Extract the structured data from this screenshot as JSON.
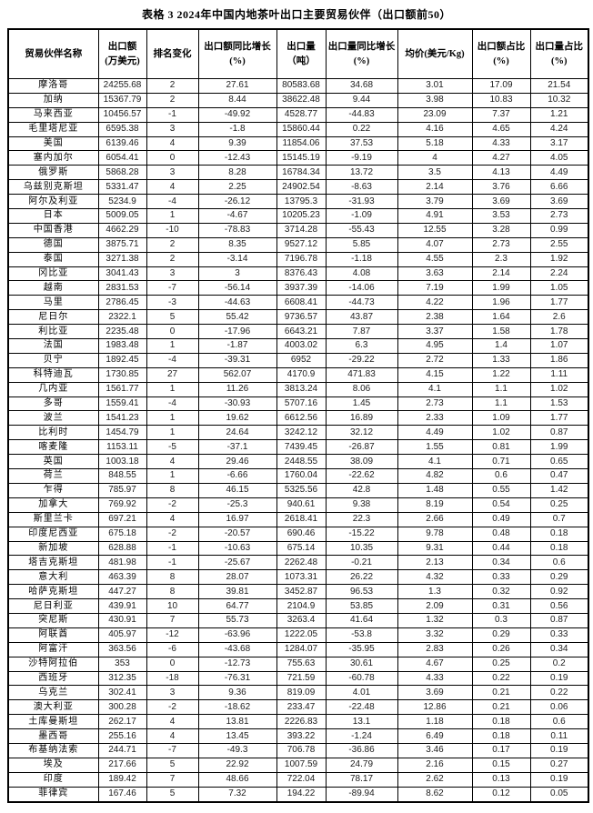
{
  "page": {
    "background_color": "#ffffff",
    "text_color": "#111111",
    "border_color": "#000000"
  },
  "title": "表格 3 2024年中国内地茶叶出口主要贸易伙伴（出口额前50）",
  "table": {
    "headers": [
      "贸易伙伴名称",
      "出口额\n(万美元)",
      "排名变化",
      "出口额同比增长\n(%)",
      "出口量\n（吨）",
      "出口量同比增长\n(%)",
      "均价(美元/Kg)",
      "出口额占比\n(%)",
      "出口量占比\n(%)"
    ],
    "rows": [
      [
        "摩洛哥",
        "24255.68",
        "2",
        "27.61",
        "80583.68",
        "34.68",
        "3.01",
        "17.09",
        "21.54"
      ],
      [
        "加纳",
        "15367.79",
        "2",
        "8.44",
        "38622.48",
        "9.44",
        "3.98",
        "10.83",
        "10.32"
      ],
      [
        "马来西亚",
        "10456.57",
        "-1",
        "-49.92",
        "4528.77",
        "-44.83",
        "23.09",
        "7.37",
        "1.21"
      ],
      [
        "毛里塔尼亚",
        "6595.38",
        "3",
        "-1.8",
        "15860.44",
        "0.22",
        "4.16",
        "4.65",
        "4.24"
      ],
      [
        "美国",
        "6139.46",
        "4",
        "9.39",
        "11854.06",
        "37.53",
        "5.18",
        "4.33",
        "3.17"
      ],
      [
        "塞内加尔",
        "6054.41",
        "0",
        "-12.43",
        "15145.19",
        "-9.19",
        "4",
        "4.27",
        "4.05"
      ],
      [
        "俄罗斯",
        "5868.28",
        "3",
        "8.28",
        "16784.34",
        "13.72",
        "3.5",
        "4.13",
        "4.49"
      ],
      [
        "乌兹别克斯坦",
        "5331.47",
        "4",
        "2.25",
        "24902.54",
        "-8.63",
        "2.14",
        "3.76",
        "6.66"
      ],
      [
        "阿尔及利亚",
        "5234.9",
        "-4",
        "-26.12",
        "13795.3",
        "-31.93",
        "3.79",
        "3.69",
        "3.69"
      ],
      [
        "日本",
        "5009.05",
        "1",
        "-4.67",
        "10205.23",
        "-1.09",
        "4.91",
        "3.53",
        "2.73"
      ],
      [
        "中国香港",
        "4662.29",
        "-10",
        "-78.83",
        "3714.28",
        "-55.43",
        "12.55",
        "3.28",
        "0.99"
      ],
      [
        "德国",
        "3875.71",
        "2",
        "8.35",
        "9527.12",
        "5.85",
        "4.07",
        "2.73",
        "2.55"
      ],
      [
        "泰国",
        "3271.38",
        "2",
        "-3.14",
        "7196.78",
        "-1.18",
        "4.55",
        "2.3",
        "1.92"
      ],
      [
        "冈比亚",
        "3041.43",
        "3",
        "3",
        "8376.43",
        "4.08",
        "3.63",
        "2.14",
        "2.24"
      ],
      [
        "越南",
        "2831.53",
        "-7",
        "-56.14",
        "3937.39",
        "-14.06",
        "7.19",
        "1.99",
        "1.05"
      ],
      [
        "马里",
        "2786.45",
        "-3",
        "-44.63",
        "6608.41",
        "-44.73",
        "4.22",
        "1.96",
        "1.77"
      ],
      [
        "尼日尔",
        "2322.1",
        "5",
        "55.42",
        "9736.57",
        "43.87",
        "2.38",
        "1.64",
        "2.6"
      ],
      [
        "利比亚",
        "2235.48",
        "0",
        "-17.96",
        "6643.21",
        "7.87",
        "3.37",
        "1.58",
        "1.78"
      ],
      [
        "法国",
        "1983.48",
        "1",
        "-1.87",
        "4003.02",
        "6.3",
        "4.95",
        "1.4",
        "1.07"
      ],
      [
        "贝宁",
        "1892.45",
        "-4",
        "-39.31",
        "6952",
        "-29.22",
        "2.72",
        "1.33",
        "1.86"
      ],
      [
        "科特迪瓦",
        "1730.85",
        "27",
        "562.07",
        "4170.9",
        "471.83",
        "4.15",
        "1.22",
        "1.11"
      ],
      [
        "几内亚",
        "1561.77",
        "1",
        "11.26",
        "3813.24",
        "8.06",
        "4.1",
        "1.1",
        "1.02"
      ],
      [
        "多哥",
        "1559.41",
        "-4",
        "-30.93",
        "5707.16",
        "1.45",
        "2.73",
        "1.1",
        "1.53"
      ],
      [
        "波兰",
        "1541.23",
        "1",
        "19.62",
        "6612.56",
        "16.89",
        "2.33",
        "1.09",
        "1.77"
      ],
      [
        "比利时",
        "1454.79",
        "1",
        "24.64",
        "3242.12",
        "32.12",
        "4.49",
        "1.02",
        "0.87"
      ],
      [
        "喀麦隆",
        "1153.11",
        "-5",
        "-37.1",
        "7439.45",
        "-26.87",
        "1.55",
        "0.81",
        "1.99"
      ],
      [
        "英国",
        "1003.18",
        "4",
        "29.46",
        "2448.55",
        "38.09",
        "4.1",
        "0.71",
        "0.65"
      ],
      [
        "荷兰",
        "848.55",
        "1",
        "-6.66",
        "1760.04",
        "-22.62",
        "4.82",
        "0.6",
        "0.47"
      ],
      [
        "乍得",
        "785.97",
        "8",
        "46.15",
        "5325.56",
        "42.8",
        "1.48",
        "0.55",
        "1.42"
      ],
      [
        "加拿大",
        "769.92",
        "-2",
        "-25.3",
        "940.61",
        "9.38",
        "8.19",
        "0.54",
        "0.25"
      ],
      [
        "斯里兰卡",
        "697.21",
        "4",
        "16.97",
        "2618.41",
        "22.3",
        "2.66",
        "0.49",
        "0.7"
      ],
      [
        "印度尼西亚",
        "675.18",
        "-2",
        "-20.57",
        "690.46",
        "-15.22",
        "9.78",
        "0.48",
        "0.18"
      ],
      [
        "新加坡",
        "628.88",
        "-1",
        "-10.63",
        "675.14",
        "10.35",
        "9.31",
        "0.44",
        "0.18"
      ],
      [
        "塔吉克斯坦",
        "481.98",
        "-1",
        "-25.67",
        "2262.48",
        "-0.21",
        "2.13",
        "0.34",
        "0.6"
      ],
      [
        "意大利",
        "463.39",
        "8",
        "28.07",
        "1073.31",
        "26.22",
        "4.32",
        "0.33",
        "0.29"
      ],
      [
        "哈萨克斯坦",
        "447.27",
        "8",
        "39.81",
        "3452.87",
        "96.53",
        "1.3",
        "0.32",
        "0.92"
      ],
      [
        "尼日利亚",
        "439.91",
        "10",
        "64.77",
        "2104.9",
        "53.85",
        "2.09",
        "0.31",
        "0.56"
      ],
      [
        "突尼斯",
        "430.91",
        "7",
        "55.73",
        "3263.4",
        "41.64",
        "1.32",
        "0.3",
        "0.87"
      ],
      [
        "阿联酋",
        "405.97",
        "-12",
        "-63.96",
        "1222.05",
        "-53.8",
        "3.32",
        "0.29",
        "0.33"
      ],
      [
        "阿富汗",
        "363.56",
        "-6",
        "-43.68",
        "1284.07",
        "-35.95",
        "2.83",
        "0.26",
        "0.34"
      ],
      [
        "沙特阿拉伯",
        "353",
        "0",
        "-12.73",
        "755.63",
        "30.61",
        "4.67",
        "0.25",
        "0.2"
      ],
      [
        "西班牙",
        "312.35",
        "-18",
        "-76.31",
        "721.59",
        "-60.78",
        "4.33",
        "0.22",
        "0.19"
      ],
      [
        "乌克兰",
        "302.41",
        "3",
        "9.36",
        "819.09",
        "4.01",
        "3.69",
        "0.21",
        "0.22"
      ],
      [
        "澳大利亚",
        "300.28",
        "-2",
        "-18.62",
        "233.47",
        "-22.48",
        "12.86",
        "0.21",
        "0.06"
      ],
      [
        "土库曼斯坦",
        "262.17",
        "4",
        "13.81",
        "2226.83",
        "13.1",
        "1.18",
        "0.18",
        "0.6"
      ],
      [
        "墨西哥",
        "255.16",
        "4",
        "13.45",
        "393.22",
        "-1.24",
        "6.49",
        "0.18",
        "0.11"
      ],
      [
        "布基纳法索",
        "244.71",
        "-7",
        "-49.3",
        "706.78",
        "-36.86",
        "3.46",
        "0.17",
        "0.19"
      ],
      [
        "埃及",
        "217.66",
        "5",
        "22.92",
        "1007.59",
        "24.79",
        "2.16",
        "0.15",
        "0.27"
      ],
      [
        "印度",
        "189.42",
        "7",
        "48.66",
        "722.04",
        "78.17",
        "2.62",
        "0.13",
        "0.19"
      ],
      [
        "菲律宾",
        "167.46",
        "5",
        "7.32",
        "194.22",
        "-89.94",
        "8.62",
        "0.12",
        "0.05"
      ]
    ]
  }
}
